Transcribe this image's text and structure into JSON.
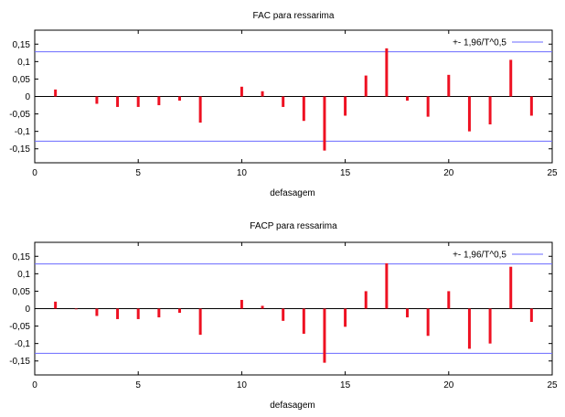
{
  "chart_data": [
    {
      "type": "bar",
      "title": "FAC para ressarima",
      "xlabel": "defasagem",
      "ylabel": "",
      "xlim": [
        0,
        25
      ],
      "ylim": [
        -0.19,
        0.19
      ],
      "xticks": [
        0,
        5,
        10,
        15,
        20,
        25
      ],
      "yticks": [
        -0.15,
        -0.1,
        -0.05,
        0,
        0.05,
        0.1,
        0.15
      ],
      "xtick_labels": [
        "0",
        "5",
        "10",
        "15",
        "20",
        "25"
      ],
      "ytick_labels": [
        "-0,15",
        "-0,1",
        "-0,05",
        "0",
        "0,05",
        "0,1",
        "0,15"
      ],
      "lags": [
        1,
        2,
        3,
        4,
        5,
        6,
        7,
        8,
        9,
        10,
        11,
        12,
        13,
        14,
        15,
        16,
        17,
        18,
        19,
        20,
        21,
        22,
        23,
        24
      ],
      "values": [
        0.02,
        0.0,
        -0.021,
        -0.03,
        -0.03,
        -0.025,
        -0.012,
        -0.075,
        0.0,
        0.028,
        0.015,
        -0.03,
        -0.07,
        -0.155,
        -0.055,
        0.06,
        0.138,
        -0.012,
        -0.058,
        0.062,
        -0.1,
        -0.08,
        0.105,
        -0.055
      ],
      "bound": 0.128,
      "legend": "+- 1,96/T^0,5",
      "legend_position": "top-right",
      "bar_color": "#ee1122",
      "bound_color": "#6a6aff",
      "grid": false
    },
    {
      "type": "bar",
      "title": "FACP para ressarima",
      "xlabel": "defasagem",
      "ylabel": "",
      "xlim": [
        0,
        25
      ],
      "ylim": [
        -0.19,
        0.19
      ],
      "xticks": [
        0,
        5,
        10,
        15,
        20,
        25
      ],
      "yticks": [
        -0.15,
        -0.1,
        -0.05,
        0,
        0.05,
        0.1,
        0.15
      ],
      "xtick_labels": [
        "0",
        "5",
        "10",
        "15",
        "20",
        "25"
      ],
      "ytick_labels": [
        "-0,15",
        "-0,1",
        "-0,05",
        "0",
        "0,05",
        "0,1",
        "0,15"
      ],
      "lags": [
        1,
        2,
        3,
        4,
        5,
        6,
        7,
        8,
        9,
        10,
        11,
        12,
        13,
        14,
        15,
        16,
        17,
        18,
        19,
        20,
        21,
        22,
        23,
        24
      ],
      "values": [
        0.02,
        -0.002,
        -0.021,
        -0.03,
        -0.03,
        -0.025,
        -0.012,
        -0.075,
        0.0,
        0.025,
        0.008,
        -0.035,
        -0.072,
        -0.155,
        -0.052,
        0.05,
        0.13,
        -0.025,
        -0.078,
        0.05,
        -0.115,
        -0.1,
        0.12,
        -0.038
      ],
      "bound": 0.128,
      "legend": "+- 1,96/T^0,5",
      "legend_position": "top-right",
      "bar_color": "#ee1122",
      "bound_color": "#6a6aff",
      "grid": false
    }
  ]
}
